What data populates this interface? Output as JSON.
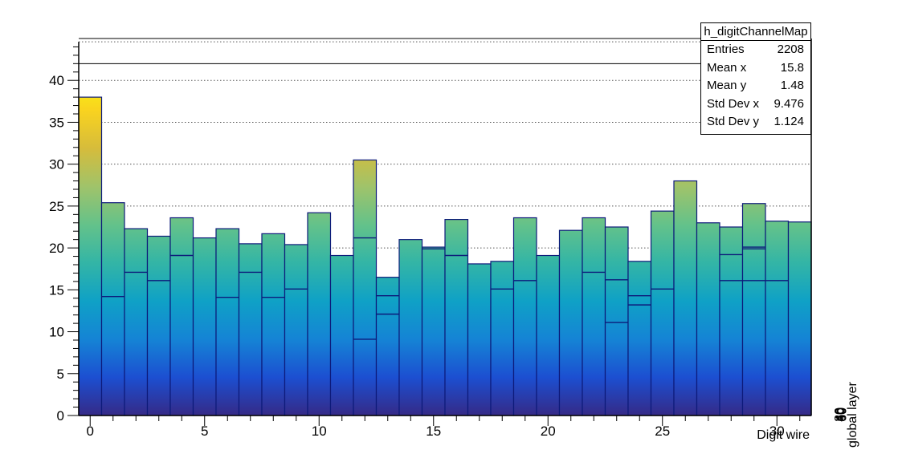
{
  "chart_data": {
    "type": "bar",
    "title": "",
    "xlabel": "Digit wire",
    "ylabel": "",
    "zlabel": "global layer",
    "x_bin_edges": [
      -0.5,
      31.5
    ],
    "xlim": [
      -0.5,
      31.5
    ],
    "ylim": [
      0,
      45
    ],
    "x_ticks": [
      0,
      5,
      10,
      15,
      20,
      25,
      30
    ],
    "y_ticks": [
      0,
      5,
      10,
      15,
      20,
      25,
      30,
      35,
      40
    ],
    "grid": "horizontal dotted",
    "x": [
      0,
      1,
      2,
      3,
      4,
      5,
      6,
      7,
      8,
      9,
      10,
      11,
      12,
      13,
      14,
      15,
      16,
      17,
      18,
      19,
      20,
      21,
      22,
      23,
      24,
      25,
      26,
      27,
      28,
      29,
      30,
      31
    ],
    "values": [
      38,
      25.4,
      22.3,
      21.4,
      23.6,
      21.2,
      22.3,
      20.5,
      21.7,
      20.4,
      24.2,
      19.1,
      30.5,
      16.5,
      21.0,
      20.1,
      23.4,
      18.1,
      18.4,
      23.6,
      19.1,
      22.1,
      23.6,
      22.5,
      18.4,
      24.4,
      28.0,
      23.0,
      22.5,
      25.3,
      23.2,
      23.1
    ],
    "layer_boundaries": [
      [],
      [
        14.2
      ],
      [
        17.1
      ],
      [
        16.1
      ],
      [
        19.1
      ],
      [],
      [
        14.1
      ],
      [
        17.1
      ],
      [
        14.1
      ],
      [
        15.1
      ],
      [],
      [],
      [
        9.1,
        21.2
      ],
      [
        12.1,
        14.3
      ],
      [],
      [
        19.9
      ],
      [
        19.1
      ],
      [],
      [
        15.1
      ],
      [
        16.1
      ],
      [],
      [],
      [
        17.1
      ],
      [
        11.1,
        16.2
      ],
      [
        13.2,
        14.3
      ],
      [
        15.1
      ],
      [],
      [],
      [
        16.1,
        19.2
      ],
      [
        16.1,
        19.9,
        20.1
      ],
      [
        16.1
      ],
      []
    ],
    "colormap": [
      "#352a87",
      "#1c4fd1",
      "#1584d5",
      "#0fa1c6",
      "#33b5a6",
      "#64c28a",
      "#a0c36a",
      "#d6bc3b",
      "#f9d31f",
      "#f9fb0e"
    ],
    "z_axis_labels": [
      "30",
      "40",
      "50",
      "60"
    ],
    "stats_box": {
      "title": "h_digitChannelMap",
      "rows": [
        {
          "label": "Entries",
          "value": "2208"
        },
        {
          "label": "Mean x",
          "value": "15.8"
        },
        {
          "label": "Mean y",
          "value": "1.48"
        },
        {
          "label": "Std Dev x",
          "value": "9.476"
        },
        {
          "label": "Std Dev y",
          "value": "1.124"
        }
      ]
    }
  }
}
